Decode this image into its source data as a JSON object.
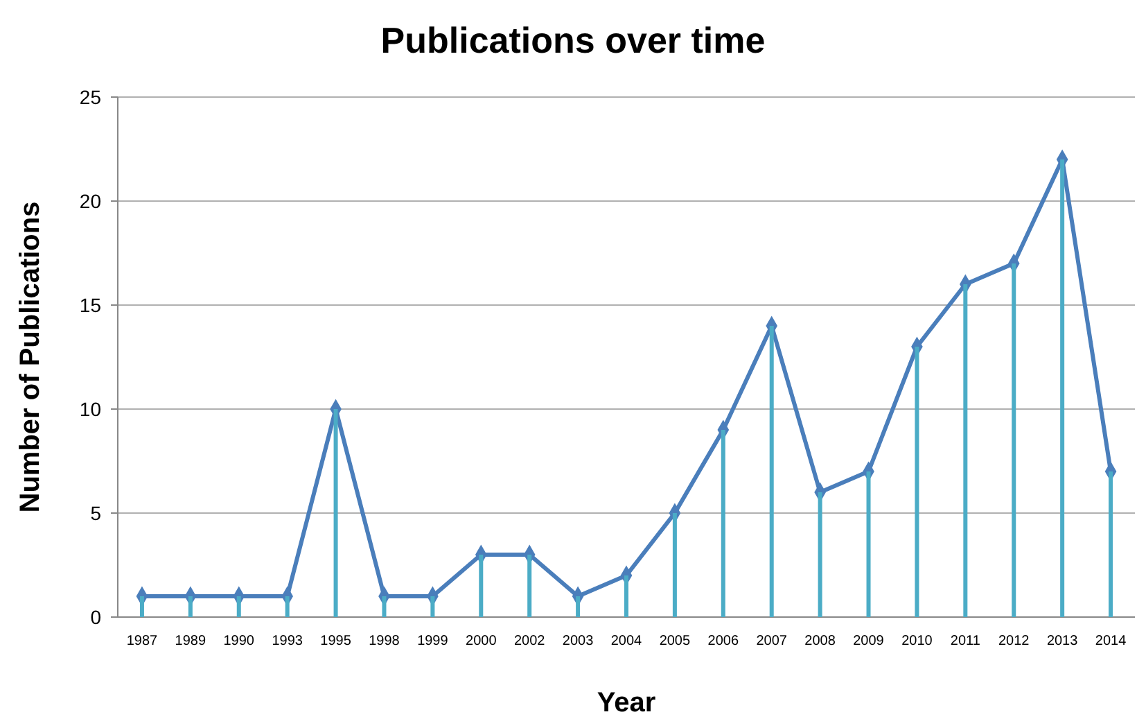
{
  "chart_data": {
    "type": "bar",
    "title": "Publications over time",
    "xlabel": "Year",
    "ylabel": "Number of Publications",
    "categories": [
      "1987",
      "1989",
      "1990",
      "1993",
      "1995",
      "1998",
      "1999",
      "2000",
      "2002",
      "2003",
      "2004",
      "2005",
      "2006",
      "2007",
      "2008",
      "2009",
      "2010",
      "2011",
      "2012",
      "2013",
      "2014"
    ],
    "series": [
      {
        "color": "#4bacc6",
        "values": [
          1,
          1,
          1,
          1,
          10,
          1,
          1,
          3,
          3,
          1,
          2,
          5,
          9,
          14,
          6,
          7,
          13,
          16,
          17,
          22,
          7
        ]
      },
      {
        "type": "line",
        "color": "#4a7ebb",
        "marker": "diamond",
        "values": [
          1,
          1,
          1,
          1,
          10,
          1,
          1,
          3,
          3,
          1,
          2,
          5,
          9,
          14,
          6,
          7,
          13,
          16,
          17,
          22,
          7
        ]
      }
    ],
    "ylim": [
      0,
      25
    ],
    "yticks": [
      0,
      5,
      10,
      15,
      20,
      25
    ],
    "grid": "y"
  }
}
